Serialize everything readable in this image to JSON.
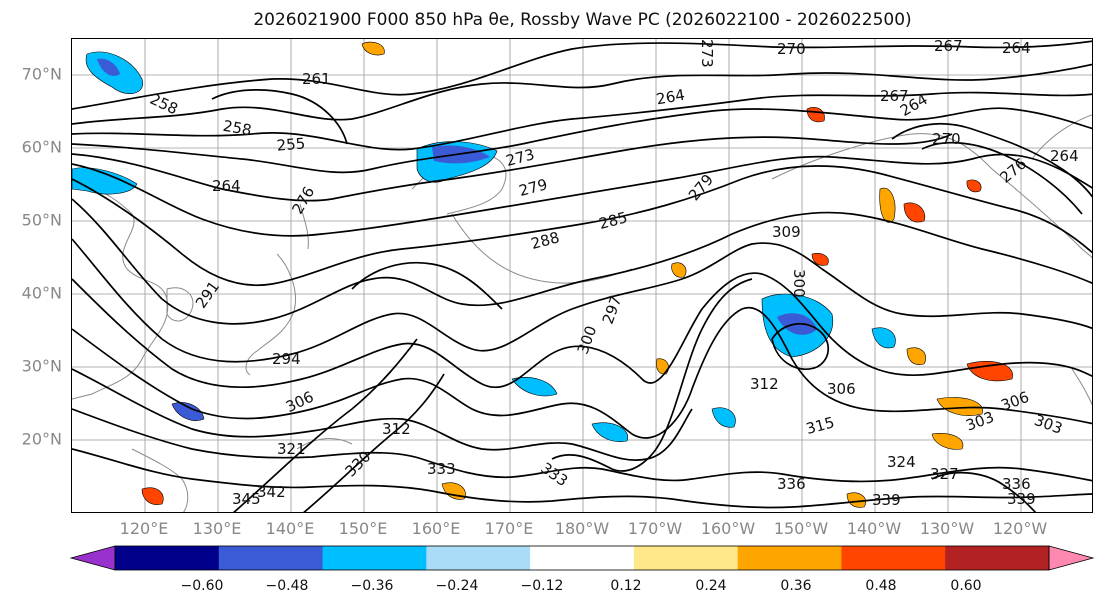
{
  "title": "2026021900 F000 850 hPa θe, Rossby Wave PC (2026022100 - 2026022500)",
  "map": {
    "lat_labels": [
      "70°N",
      "60°N",
      "50°N",
      "40°N",
      "30°N",
      "20°N"
    ],
    "lon_labels": [
      "120°E",
      "130°E",
      "140°E",
      "150°E",
      "160°E",
      "170°E",
      "180°W",
      "170°W",
      "160°W",
      "150°W",
      "140°W",
      "130°W",
      "120°W"
    ],
    "contour_labels": [
      "270",
      "267",
      "264",
      "261",
      "258",
      "258",
      "255",
      "273",
      "264",
      "264",
      "279",
      "276",
      "273",
      "279",
      "285",
      "288",
      "291",
      "297",
      "300",
      "294",
      "306",
      "309",
      "300",
      "312",
      "306",
      "315",
      "303",
      "306",
      "303",
      "321",
      "324",
      "327",
      "333",
      "333",
      "336",
      "339",
      "336",
      "339",
      "342",
      "345",
      "312",
      "330",
      "270",
      "276",
      "264",
      "267",
      "264"
    ],
    "contour_color": "#000000",
    "coastline_color": "#888888"
  },
  "colorbar": {
    "tick_labels": [
      "−0.60",
      "−0.48",
      "−0.36",
      "−0.24",
      "−0.12",
      "0.12",
      "0.24",
      "0.36",
      "0.48",
      "0.60"
    ],
    "ticks": [
      -0.6,
      -0.48,
      -0.36,
      -0.24,
      -0.12,
      0.12,
      0.24,
      0.36,
      0.48,
      0.6
    ],
    "colors": [
      "#9932cc",
      "#00008b",
      "#3b5bd6",
      "#00bfff",
      "#aadcf8",
      "#ffffff",
      "#ffe88a",
      "#ffa500",
      "#ff4500",
      "#b22222",
      "#ff88b0"
    ],
    "extend": "both"
  }
}
